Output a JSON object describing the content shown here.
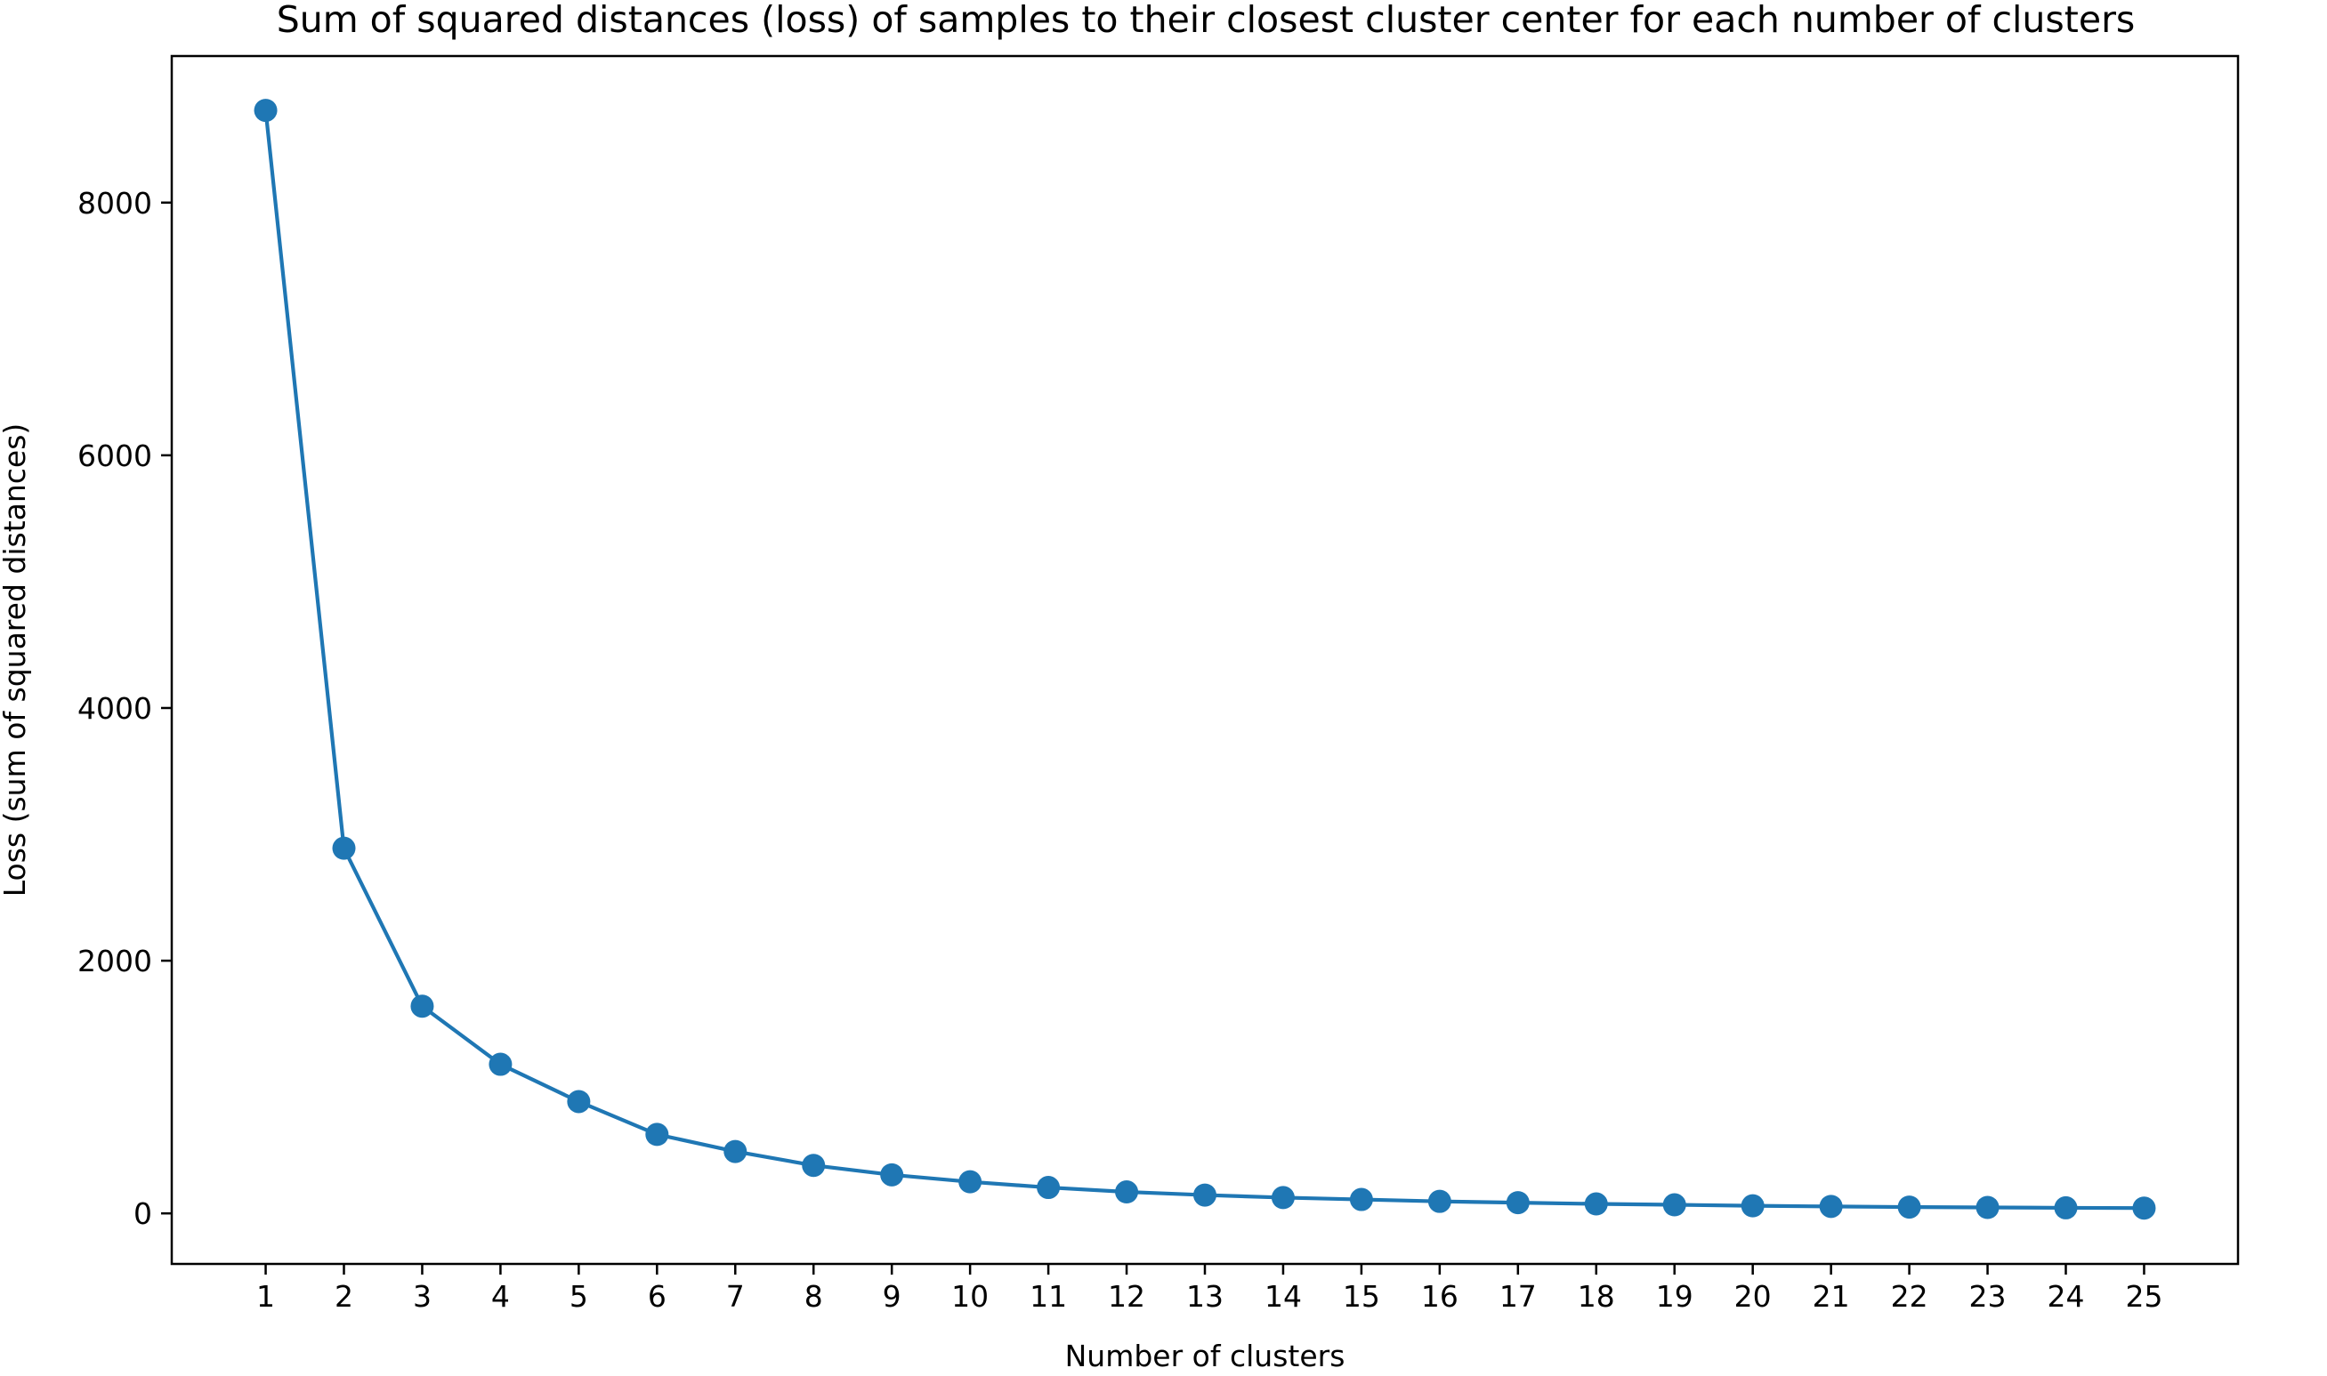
{
  "chart_data": {
    "type": "line",
    "title": "Sum of squared distances (loss) of samples to their closest cluster center for each number of clusters",
    "xlabel": "Number of clusters",
    "ylabel": "Loss (sum of squared distances)",
    "x": [
      1,
      2,
      3,
      4,
      5,
      6,
      7,
      8,
      9,
      10,
      11,
      12,
      13,
      14,
      15,
      16,
      17,
      18,
      19,
      20,
      21,
      22,
      23,
      24,
      25
    ],
    "series": [
      {
        "values": [
          8730,
          2890,
          1640,
          1180,
          885,
          625,
          490,
          380,
          305,
          250,
          205,
          170,
          145,
          125,
          110,
          95,
          85,
          75,
          68,
          60,
          55,
          50,
          47,
          44,
          42
        ],
        "color": "#1f77b4",
        "marker": "circle"
      }
    ],
    "xticks": [
      "1",
      "2",
      "3",
      "4",
      "5",
      "6",
      "7",
      "8",
      "9",
      "10",
      "11",
      "12",
      "13",
      "14",
      "15",
      "16",
      "17",
      "18",
      "19",
      "20",
      "21",
      "22",
      "23",
      "24",
      "25"
    ],
    "yticks": [
      0,
      2000,
      4000,
      6000,
      8000
    ],
    "ytick_labels": [
      "0",
      "2000",
      "4000",
      "6000",
      "8000"
    ],
    "xlim": [
      -0.2,
      26.2
    ],
    "ylim": [
      -400,
      9160
    ],
    "grid": false,
    "legend": "none"
  }
}
